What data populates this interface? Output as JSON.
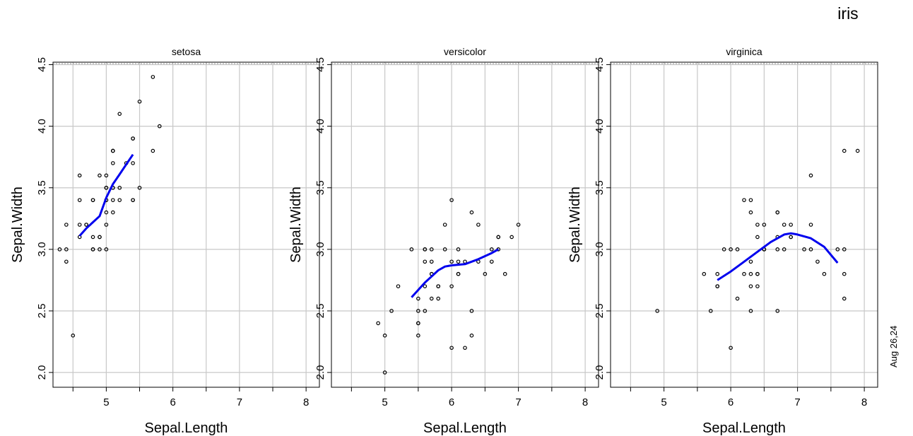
{
  "figure": {
    "title": "iris",
    "date": "Aug 26,24",
    "colors": {
      "smooth": "#0000ee",
      "grid": "#c8c8c8",
      "points": "#000000"
    }
  },
  "chart_data": [
    {
      "type": "scatter",
      "title": "setosa",
      "xlabel": "Sepal.Length",
      "ylabel": "Sepal.Width",
      "xlim": [
        4.2,
        8.2
      ],
      "ylim": [
        1.88,
        4.52
      ],
      "xticks": [
        5,
        6,
        7,
        8
      ],
      "yticks": [
        2.0,
        2.5,
        3.0,
        3.5,
        4.0,
        4.5
      ],
      "ytick_labels": [
        "2.0",
        "2.5",
        "3.0",
        "3.5",
        "4.0",
        "4.5"
      ],
      "grid": true,
      "points": [
        [
          5.1,
          3.5
        ],
        [
          4.9,
          3.0
        ],
        [
          4.7,
          3.2
        ],
        [
          4.6,
          3.1
        ],
        [
          5.0,
          3.6
        ],
        [
          5.4,
          3.9
        ],
        [
          4.6,
          3.4
        ],
        [
          5.0,
          3.4
        ],
        [
          4.4,
          2.9
        ],
        [
          4.9,
          3.1
        ],
        [
          5.4,
          3.7
        ],
        [
          4.8,
          3.4
        ],
        [
          4.8,
          3.0
        ],
        [
          4.3,
          3.0
        ],
        [
          5.8,
          4.0
        ],
        [
          5.7,
          4.4
        ],
        [
          5.4,
          3.9
        ],
        [
          5.1,
          3.5
        ],
        [
          5.7,
          3.8
        ],
        [
          5.1,
          3.8
        ],
        [
          5.4,
          3.4
        ],
        [
          5.1,
          3.7
        ],
        [
          4.6,
          3.6
        ],
        [
          5.1,
          3.3
        ],
        [
          4.8,
          3.4
        ],
        [
          5.0,
          3.0
        ],
        [
          5.0,
          3.4
        ],
        [
          5.2,
          3.5
        ],
        [
          5.2,
          3.4
        ],
        [
          4.7,
          3.2
        ],
        [
          4.8,
          3.1
        ],
        [
          5.4,
          3.4
        ],
        [
          5.2,
          4.1
        ],
        [
          5.5,
          4.2
        ],
        [
          4.9,
          3.1
        ],
        [
          5.0,
          3.2
        ],
        [
          5.5,
          3.5
        ],
        [
          4.9,
          3.6
        ],
        [
          4.4,
          3.0
        ],
        [
          5.1,
          3.4
        ],
        [
          5.0,
          3.5
        ],
        [
          4.5,
          2.3
        ],
        [
          4.4,
          3.2
        ],
        [
          5.0,
          3.5
        ],
        [
          5.1,
          3.8
        ],
        [
          4.8,
          3.0
        ],
        [
          5.1,
          3.8
        ],
        [
          4.6,
          3.2
        ],
        [
          5.3,
          3.7
        ],
        [
          5.0,
          3.3
        ]
      ],
      "smooth": [
        [
          4.6,
          3.11
        ],
        [
          4.7,
          3.17
        ],
        [
          4.8,
          3.22
        ],
        [
          4.9,
          3.27
        ],
        [
          5.0,
          3.42
        ],
        [
          5.1,
          3.53
        ],
        [
          5.2,
          3.61
        ],
        [
          5.3,
          3.69
        ],
        [
          5.4,
          3.77
        ]
      ]
    },
    {
      "type": "scatter",
      "title": "versicolor",
      "xlabel": "Sepal.Length",
      "ylabel": "Sepal.Width",
      "xlim": [
        4.2,
        8.2
      ],
      "ylim": [
        1.88,
        4.52
      ],
      "xticks": [
        5,
        6,
        7,
        8
      ],
      "yticks": [
        2.0,
        2.5,
        3.0,
        3.5,
        4.0,
        4.5
      ],
      "ytick_labels": [
        "2.0",
        "2.5",
        "3.0",
        "3.5",
        "4.0",
        "4.5"
      ],
      "grid": true,
      "points": [
        [
          7.0,
          3.2
        ],
        [
          6.4,
          3.2
        ],
        [
          6.9,
          3.1
        ],
        [
          5.5,
          2.3
        ],
        [
          6.5,
          2.8
        ],
        [
          5.7,
          2.8
        ],
        [
          6.3,
          3.3
        ],
        [
          4.9,
          2.4
        ],
        [
          6.6,
          2.9
        ],
        [
          5.2,
          2.7
        ],
        [
          5.0,
          2.0
        ],
        [
          5.9,
          3.0
        ],
        [
          6.0,
          2.2
        ],
        [
          6.1,
          2.9
        ],
        [
          5.6,
          2.9
        ],
        [
          6.7,
          3.1
        ],
        [
          5.6,
          3.0
        ],
        [
          5.8,
          2.7
        ],
        [
          6.2,
          2.2
        ],
        [
          5.6,
          2.5
        ],
        [
          5.9,
          3.2
        ],
        [
          6.1,
          2.8
        ],
        [
          6.3,
          2.5
        ],
        [
          6.1,
          2.8
        ],
        [
          6.4,
          2.9
        ],
        [
          6.6,
          3.0
        ],
        [
          6.8,
          2.8
        ],
        [
          6.7,
          3.0
        ],
        [
          6.0,
          2.9
        ],
        [
          5.7,
          2.6
        ],
        [
          5.5,
          2.4
        ],
        [
          5.5,
          2.4
        ],
        [
          5.8,
          2.7
        ],
        [
          6.0,
          2.7
        ],
        [
          5.4,
          3.0
        ],
        [
          6.0,
          3.4
        ],
        [
          6.7,
          3.1
        ],
        [
          6.3,
          2.3
        ],
        [
          5.6,
          3.0
        ],
        [
          5.5,
          2.5
        ],
        [
          5.5,
          2.6
        ],
        [
          6.1,
          3.0
        ],
        [
          5.8,
          2.6
        ],
        [
          5.0,
          2.3
        ],
        [
          5.6,
          2.7
        ],
        [
          5.7,
          3.0
        ],
        [
          5.7,
          2.9
        ],
        [
          6.2,
          2.9
        ],
        [
          5.1,
          2.5
        ],
        [
          5.7,
          2.8
        ]
      ],
      "smooth": [
        [
          5.4,
          2.61
        ],
        [
          5.5,
          2.67
        ],
        [
          5.6,
          2.73
        ],
        [
          5.7,
          2.78
        ],
        [
          5.8,
          2.83
        ],
        [
          5.9,
          2.86
        ],
        [
          6.0,
          2.87
        ],
        [
          6.2,
          2.88
        ],
        [
          6.4,
          2.92
        ],
        [
          6.6,
          2.97
        ],
        [
          6.7,
          3.0
        ]
      ]
    },
    {
      "type": "scatter",
      "title": "virginica",
      "xlabel": "Sepal.Length",
      "ylabel": "Sepal.Width",
      "xlim": [
        4.2,
        8.2
      ],
      "ylim": [
        1.88,
        4.52
      ],
      "xticks": [
        5,
        6,
        7,
        8
      ],
      "yticks": [
        2.0,
        2.5,
        3.0,
        3.5,
        4.0,
        4.5
      ],
      "ytick_labels": [
        "2.0",
        "2.5",
        "3.0",
        "3.5",
        "4.0",
        "4.5"
      ],
      "grid": true,
      "points": [
        [
          6.3,
          3.3
        ],
        [
          5.8,
          2.7
        ],
        [
          7.1,
          3.0
        ],
        [
          6.3,
          2.9
        ],
        [
          6.5,
          3.0
        ],
        [
          7.6,
          3.0
        ],
        [
          4.9,
          2.5
        ],
        [
          7.3,
          2.9
        ],
        [
          6.7,
          2.5
        ],
        [
          7.2,
          3.6
        ],
        [
          6.5,
          3.2
        ],
        [
          6.4,
          2.7
        ],
        [
          6.8,
          3.0
        ],
        [
          5.7,
          2.5
        ],
        [
          5.8,
          2.8
        ],
        [
          6.4,
          3.2
        ],
        [
          6.5,
          3.0
        ],
        [
          7.7,
          3.8
        ],
        [
          7.7,
          2.6
        ],
        [
          6.0,
          2.2
        ],
        [
          6.9,
          3.2
        ],
        [
          5.6,
          2.8
        ],
        [
          7.7,
          2.8
        ],
        [
          6.3,
          2.7
        ],
        [
          6.7,
          3.3
        ],
        [
          7.2,
          3.2
        ],
        [
          6.2,
          2.8
        ],
        [
          6.1,
          3.0
        ],
        [
          6.4,
          2.8
        ],
        [
          7.2,
          3.0
        ],
        [
          7.4,
          2.8
        ],
        [
          7.9,
          3.8
        ],
        [
          6.4,
          2.8
        ],
        [
          6.3,
          2.8
        ],
        [
          6.1,
          2.6
        ],
        [
          7.7,
          3.0
        ],
        [
          6.3,
          3.4
        ],
        [
          6.4,
          3.1
        ],
        [
          6.0,
          3.0
        ],
        [
          6.9,
          3.1
        ],
        [
          6.7,
          3.1
        ],
        [
          6.9,
          3.1
        ],
        [
          5.8,
          2.7
        ],
        [
          6.8,
          3.2
        ],
        [
          6.7,
          3.3
        ],
        [
          6.7,
          3.0
        ],
        [
          6.3,
          2.5
        ],
        [
          6.5,
          3.0
        ],
        [
          6.2,
          3.4
        ],
        [
          5.9,
          3.0
        ]
      ],
      "smooth": [
        [
          5.8,
          2.75
        ],
        [
          6.0,
          2.82
        ],
        [
          6.2,
          2.9
        ],
        [
          6.4,
          2.98
        ],
        [
          6.6,
          3.06
        ],
        [
          6.8,
          3.12
        ],
        [
          6.9,
          3.13
        ],
        [
          7.0,
          3.12
        ],
        [
          7.2,
          3.09
        ],
        [
          7.4,
          3.02
        ],
        [
          7.6,
          2.89
        ]
      ]
    }
  ]
}
